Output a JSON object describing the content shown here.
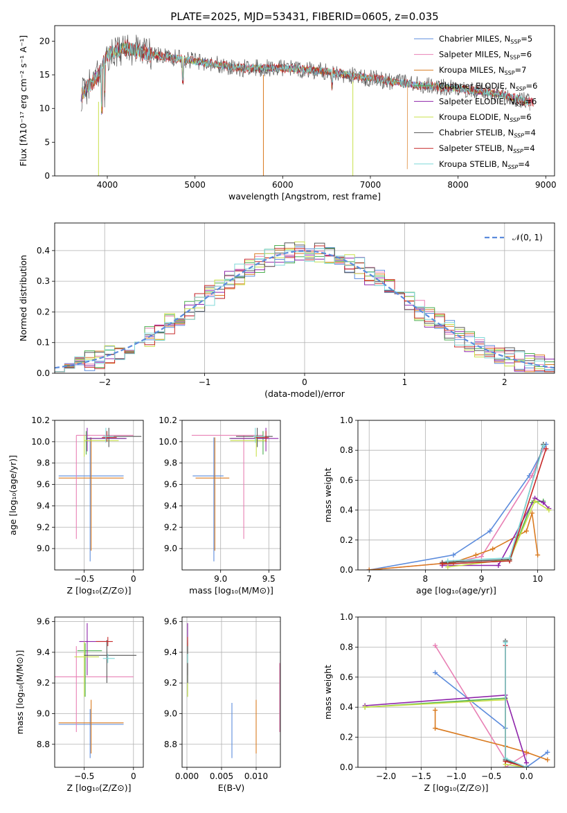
{
  "figure": {
    "title": "PLATE=2025, MJD=53431, FIBERID=0605, z=0.035"
  },
  "colors": {
    "chabrier_miles": "#5b8bdc",
    "salpeter_miles": "#e87fb4",
    "kroupa_miles": "#d97a1f",
    "chabrier_elodie": "#4caf50",
    "salpeter_elodie": "#8e24aa",
    "kroupa_elodie": "#c8e04a",
    "chabrier_stelib": "#555555",
    "salpeter_stelib": "#c62828",
    "kroupa_stelib": "#7fd8d8",
    "gaussian": "#5b8bdc",
    "grid": "#b0b0b0"
  },
  "chart_data": [
    {
      "id": "spectrum",
      "type": "line",
      "xlabel": "wavelength [Angstrom, rest frame]",
      "ylabel": "Flux [fλ10⁻¹⁷ erg cm⁻² s⁻¹ A⁻¹]",
      "xlim": [
        3400,
        9100
      ],
      "ylim": [
        0,
        22.3
      ],
      "xticks": [
        4000,
        5000,
        6000,
        7000,
        8000,
        9000
      ],
      "yticks": [
        0,
        5,
        10,
        15,
        20
      ],
      "grid": false,
      "legend_position": "top-right",
      "legend": [
        {
          "label": "Chabrier MILES, N",
          "sub": "SSP",
          "eq": "=5",
          "color": "#5b8bdc"
        },
        {
          "label": "Salpeter MILES, N",
          "sub": "SSP",
          "eq": "=6",
          "color": "#e87fb4"
        },
        {
          "label": "Kroupa MILES, N",
          "sub": "SSP",
          "eq": "=7",
          "color": "#d97a1f"
        },
        {
          "label": "Chabrier ELODIE, N",
          "sub": "SSP",
          "eq": "=6",
          "color": "#4caf50"
        },
        {
          "label": "Salpeter ELODIE, N",
          "sub": "SSP",
          "eq": "=6",
          "color": "#8e24aa"
        },
        {
          "label": "Kroupa ELODIE, N",
          "sub": "SSP",
          "eq": "=6",
          "color": "#c8e04a"
        },
        {
          "label": "Chabrier STELIB, N",
          "sub": "SSP",
          "eq": "=4",
          "color": "#555555"
        },
        {
          "label": "Salpeter STELIB, N",
          "sub": "SSP",
          "eq": "=4",
          "color": "#c62828"
        },
        {
          "label": "Kroupa STELIB, N",
          "sub": "SSP",
          "eq": "=4",
          "color": "#7fd8d8"
        }
      ],
      "data_envelope": {
        "x": [
          3700,
          3900,
          4000,
          4200,
          4500,
          5000,
          5500,
          6000,
          6500,
          7000,
          7500,
          8000,
          8500,
          8800
        ],
        "y": [
          12,
          15,
          18,
          19,
          18,
          17,
          16,
          16,
          15.5,
          14.5,
          13.5,
          13,
          12,
          11
        ]
      }
    },
    {
      "id": "residuals",
      "type": "histogram",
      "xlabel": "(data-model)/error",
      "ylabel": "Normed distribution",
      "xlim": [
        -2.5,
        2.5
      ],
      "ylim": [
        0,
        0.49
      ],
      "xticks": [
        -2,
        -1,
        0,
        1,
        2
      ],
      "yticks": [
        0.0,
        0.1,
        0.2,
        0.3,
        0.4
      ],
      "grid": true,
      "legend": [
        {
          "label": "𝒩(0, 1)",
          "style": "dashed"
        }
      ],
      "legend_position": "top-right",
      "bin_edges_start": -2.5,
      "bin_width": 0.1
    },
    {
      "id": "age_vs_Z",
      "type": "errorbar",
      "xlabel": "Z [log₁₀(Z/Z⊙)]",
      "ylabel": "age  [log₁₀(age/yr)]",
      "xlim": [
        -0.8,
        0.1
      ],
      "ylim": [
        8.8,
        10.2
      ],
      "xticks": [
        -0.5,
        0.0
      ],
      "yticks": [
        9.0,
        9.2,
        9.4,
        9.6,
        9.8,
        10.0,
        10.2
      ],
      "grid": true,
      "points": [
        {
          "series": "chabrier_miles",
          "x": -0.44,
          "y": 9.68,
          "xerr": [
            0.32,
            0.34
          ],
          "yerr": [
            0.8,
            0.36
          ]
        },
        {
          "series": "kroupa_miles",
          "x": -0.43,
          "y": 9.66,
          "xerr": [
            0.33,
            0.33
          ],
          "yerr": [
            0.68,
            0.38
          ]
        },
        {
          "series": "salpeter_miles",
          "x": -0.58,
          "y": 10.06,
          "xerr": [
            0.0,
            0.58
          ],
          "yerr": [
            0.97,
            0.0
          ]
        },
        {
          "series": "chabrier_elodie",
          "x": -0.48,
          "y": 10.03,
          "xerr": [
            0.0,
            0.4
          ],
          "yerr": [
            0.15,
            0.07
          ]
        },
        {
          "series": "salpeter_elodie",
          "x": -0.47,
          "y": 10.03,
          "xerr": [
            0.0,
            0.4
          ],
          "yerr": [
            0.12,
            0.1
          ]
        },
        {
          "series": "kroupa_elodie",
          "x": -0.5,
          "y": 10.01,
          "xerr": [
            0.0,
            0.35
          ],
          "yerr": [
            0.15,
            0.05
          ]
        },
        {
          "series": "chabrier_stelib",
          "x": -0.25,
          "y": 10.05,
          "xerr": [
            0.0,
            0.33
          ],
          "yerr": [
            0.1,
            0.08
          ]
        },
        {
          "series": "salpeter_stelib",
          "x": -0.27,
          "y": 10.04,
          "xerr": [
            0.05,
            0.1
          ],
          "yerr": [
            0.04,
            0.06
          ]
        },
        {
          "series": "kroupa_stelib",
          "x": -0.28,
          "y": 10.05,
          "xerr": [
            0.03,
            0.08
          ],
          "yerr": [
            0.06,
            0.08
          ]
        }
      ]
    },
    {
      "id": "age_vs_mass",
      "type": "errorbar",
      "xlabel": "mass [log₁₀(M/M⊙)]",
      "ylabel": "",
      "xlim": [
        8.6,
        9.62
      ],
      "ylim": [
        8.8,
        10.2
      ],
      "xticks": [
        9.0,
        9.5
      ],
      "yticks": [
        9.0,
        9.2,
        9.4,
        9.6,
        9.8,
        10.0,
        10.2
      ],
      "grid": true,
      "points": [
        {
          "series": "chabrier_miles",
          "x": 8.93,
          "y": 9.68,
          "xerr": [
            0.22,
            0.1
          ],
          "yerr": [
            0.8,
            0.36
          ]
        },
        {
          "series": "kroupa_miles",
          "x": 8.94,
          "y": 9.66,
          "xerr": [
            0.2,
            0.15
          ],
          "yerr": [
            0.68,
            0.38
          ]
        },
        {
          "series": "salpeter_miles",
          "x": 9.24,
          "y": 10.06,
          "xerr": [
            0.54,
            0.2
          ],
          "yerr": [
            0.97,
            0.0
          ]
        },
        {
          "series": "chabrier_elodie",
          "x": 9.44,
          "y": 10.03,
          "xerr": [
            0.35,
            0.05
          ],
          "yerr": [
            0.15,
            0.07
          ]
        },
        {
          "series": "salpeter_elodie",
          "x": 9.47,
          "y": 10.03,
          "xerr": [
            0.37,
            0.13
          ],
          "yerr": [
            0.12,
            0.1
          ]
        },
        {
          "series": "kroupa_elodie",
          "x": 9.37,
          "y": 10.01,
          "xerr": [
            0.27,
            0.1
          ],
          "yerr": [
            0.15,
            0.05
          ]
        },
        {
          "series": "chabrier_stelib",
          "x": 9.38,
          "y": 10.05,
          "xerr": [
            0.22,
            0.16
          ],
          "yerr": [
            0.1,
            0.08
          ]
        },
        {
          "series": "salpeter_stelib",
          "x": 9.47,
          "y": 10.04,
          "xerr": [
            0.12,
            0.03
          ],
          "yerr": [
            0.04,
            0.06
          ]
        },
        {
          "series": "kroupa_stelib",
          "x": 9.36,
          "y": 10.05,
          "xerr": [
            0.02,
            0.1
          ],
          "yerr": [
            0.06,
            0.08
          ]
        }
      ]
    },
    {
      "id": "massweight_vs_age",
      "type": "line",
      "xlabel": "age  [log₁₀(age/yr)]",
      "ylabel": "mass weight",
      "xlim": [
        6.8,
        10.3
      ],
      "ylim": [
        0.0,
        1.0
      ],
      "xticks": [
        7,
        8,
        9,
        10
      ],
      "yticks": [
        0.0,
        0.2,
        0.4,
        0.6,
        0.8,
        1.0
      ],
      "grid": true,
      "series": [
        {
          "name": "chabrier_miles",
          "x": [
            7.0,
            8.5,
            9.15,
            9.85,
            10.15
          ],
          "y": [
            0.0,
            0.1,
            0.26,
            0.63,
            0.84
          ]
        },
        {
          "name": "salpeter_miles",
          "x": [
            7.0,
            8.5,
            9.0,
            9.9,
            10.1
          ],
          "y": [
            0.0,
            0.05,
            0.09,
            0.63,
            0.81
          ]
        },
        {
          "name": "kroupa_miles",
          "x": [
            7.0,
            8.5,
            8.9,
            9.2,
            9.8,
            9.9,
            10.0
          ],
          "y": [
            0.0,
            0.05,
            0.1,
            0.14,
            0.26,
            0.38,
            0.1
          ]
        },
        {
          "name": "chabrier_elodie",
          "x": [
            8.3,
            9.5,
            9.9,
            10.1
          ],
          "y": [
            0.04,
            0.06,
            0.45,
            0.46
          ]
        },
        {
          "name": "salpeter_elodie",
          "x": [
            8.3,
            9.3,
            9.95,
            10.1,
            10.2
          ],
          "y": [
            0.03,
            0.03,
            0.48,
            0.45,
            0.41
          ]
        },
        {
          "name": "kroupa_elodie",
          "x": [
            8.4,
            9.5,
            9.95,
            10.2
          ],
          "y": [
            0.02,
            0.07,
            0.46,
            0.4
          ]
        },
        {
          "name": "chabrier_stelib",
          "x": [
            8.3,
            9.5,
            10.1
          ],
          "y": [
            0.05,
            0.07,
            0.84
          ]
        },
        {
          "name": "salpeter_stelib",
          "x": [
            8.3,
            9.5,
            10.15
          ],
          "y": [
            0.04,
            0.06,
            0.81
          ]
        },
        {
          "name": "kroupa_stelib",
          "x": [
            8.4,
            9.5,
            10.1
          ],
          "y": [
            0.06,
            0.08,
            0.83
          ]
        }
      ]
    },
    {
      "id": "mass_vs_Z",
      "type": "errorbar",
      "xlabel": "Z [log₁₀(Z/Z⊙)]",
      "ylabel": "mass [log₁₀(M/M⊙)]",
      "xlim": [
        -0.8,
        0.1
      ],
      "ylim": [
        8.65,
        9.63
      ],
      "xticks": [
        -0.5,
        0.0
      ],
      "yticks": [
        8.8,
        9.0,
        9.2,
        9.4,
        9.6
      ],
      "grid": true,
      "points": [
        {
          "series": "chabrier_miles",
          "x": -0.44,
          "y": 8.93,
          "xerr": [
            0.32,
            0.34
          ],
          "yerr": [
            0.22,
            0.1
          ]
        },
        {
          "series": "kroupa_miles",
          "x": -0.43,
          "y": 8.94,
          "xerr": [
            0.33,
            0.33
          ],
          "yerr": [
            0.2,
            0.15
          ]
        },
        {
          "series": "salpeter_miles",
          "x": -0.58,
          "y": 9.24,
          "xerr": [
            0.22,
            0.58
          ],
          "yerr": [
            0.36,
            0.2
          ]
        },
        {
          "series": "chabrier_elodie",
          "x": -0.49,
          "y": 9.41,
          "xerr": [
            0.08,
            0.17
          ],
          "yerr": [
            0.3,
            0.05
          ]
        },
        {
          "series": "salpeter_elodie",
          "x": -0.47,
          "y": 9.47,
          "xerr": [
            0.08,
            0.2
          ],
          "yerr": [
            0.22,
            0.12
          ]
        },
        {
          "series": "kroupa_elodie",
          "x": -0.5,
          "y": 9.37,
          "xerr": [
            0.1,
            0.15
          ],
          "yerr": [
            0.26,
            0.1
          ]
        },
        {
          "series": "chabrier_stelib",
          "x": -0.27,
          "y": 9.38,
          "xerr": [
            0.23,
            0.3
          ],
          "yerr": [
            0.18,
            0.1
          ]
        },
        {
          "series": "salpeter_stelib",
          "x": -0.26,
          "y": 9.47,
          "xerr": [
            0.12,
            0.05
          ],
          "yerr": [
            0.03,
            0.03
          ]
        },
        {
          "series": "kroupa_stelib",
          "x": -0.26,
          "y": 9.36,
          "xerr": [
            0.05,
            0.07
          ],
          "yerr": [
            0.03,
            0.03
          ]
        }
      ]
    },
    {
      "id": "mass_vs_ebv",
      "type": "errorbar",
      "xlabel": "E(B-V)",
      "ylabel": "",
      "xlim": [
        -0.0007,
        0.0135
      ],
      "ylim": [
        8.65,
        9.63
      ],
      "xticks": [
        0.0,
        0.005,
        0.01
      ],
      "yticks": [
        8.8,
        9.0,
        9.2,
        9.4,
        9.6
      ],
      "grid": true,
      "points": [
        {
          "series": "chabrier_miles",
          "x": 0.0065,
          "y": 8.93,
          "xerr": [
            0,
            0
          ],
          "yerr": [
            0.22,
            0.14
          ]
        },
        {
          "series": "kroupa_miles",
          "x": 0.01,
          "y": 8.94,
          "xerr": [
            0,
            0
          ],
          "yerr": [
            0.2,
            0.15
          ]
        },
        {
          "series": "salpeter_miles",
          "x": 0.0134,
          "y": 9.1,
          "xerr": [
            0,
            0
          ],
          "yerr": [
            0.22,
            0.23
          ]
        },
        {
          "series": "chabrier_elodie",
          "x": 0.0001,
          "y": 9.41,
          "xerr": [
            0,
            0
          ],
          "yerr": [
            0.3,
            0.05
          ]
        },
        {
          "series": "salpeter_elodie",
          "x": 0.0001,
          "y": 9.47,
          "xerr": [
            0,
            0
          ],
          "yerr": [
            0.22,
            0.12
          ]
        },
        {
          "series": "kroupa_elodie",
          "x": 0.0001,
          "y": 9.37,
          "xerr": [
            0,
            0
          ],
          "yerr": [
            0.26,
            0.1
          ]
        },
        {
          "series": "chabrier_stelib",
          "x": 0.0001,
          "y": 9.38,
          "xerr": [
            0,
            0
          ],
          "yerr": [
            0.18,
            0.1
          ]
        },
        {
          "series": "salpeter_stelib",
          "x": 0.0001,
          "y": 9.47,
          "xerr": [
            0,
            0
          ],
          "yerr": [
            0.03,
            0.03
          ]
        },
        {
          "series": "kroupa_stelib",
          "x": 0.0001,
          "y": 9.36,
          "xerr": [
            0,
            0
          ],
          "yerr": [
            0.03,
            0.03
          ]
        }
      ]
    },
    {
      "id": "massweight_vs_Z",
      "type": "line",
      "xlabel": "Z [log₁₀(Z/Z⊙)]",
      "ylabel": "mass weight",
      "xlim": [
        -2.4,
        0.4
      ],
      "ylim": [
        0.0,
        1.0
      ],
      "xticks": [
        -2.0,
        -1.5,
        -1.0,
        -0.5,
        0.0
      ],
      "yticks": [
        0.0,
        0.2,
        0.4,
        0.6,
        0.8,
        1.0
      ],
      "grid": true,
      "series": [
        {
          "name": "chabrier_miles",
          "x": [
            -1.3,
            -0.3,
            -0.3,
            0.0,
            0.3
          ],
          "y": [
            0.63,
            0.26,
            0.0,
            0.0,
            0.1
          ]
        },
        {
          "name": "salpeter_miles",
          "x": [
            -1.3,
            -0.3,
            -0.3,
            0.0
          ],
          "y": [
            0.81,
            0.05,
            0.0,
            0.09
          ]
        },
        {
          "name": "kroupa_miles",
          "x": [
            -1.3,
            -1.3,
            -0.3,
            0.0,
            0.3
          ],
          "y": [
            0.38,
            0.26,
            0.14,
            0.1,
            0.05
          ]
        },
        {
          "name": "chabrier_elodie",
          "x": [
            -2.3,
            -0.3,
            -0.3,
            0.0
          ],
          "y": [
            0.4,
            0.46,
            0.04,
            0.0
          ]
        },
        {
          "name": "salpeter_elodie",
          "x": [
            -2.3,
            -0.3,
            0.0
          ],
          "y": [
            0.41,
            0.48,
            0.03
          ]
        },
        {
          "name": "kroupa_elodie",
          "x": [
            -2.3,
            -0.3,
            -0.3,
            0.0
          ],
          "y": [
            0.4,
            0.45,
            0.02,
            0.0
          ]
        },
        {
          "name": "chabrier_stelib",
          "x": [
            -0.3,
            -0.3,
            0.0
          ],
          "y": [
            0.84,
            0.05,
            0.0
          ]
        },
        {
          "name": "salpeter_stelib",
          "x": [
            -0.3,
            -0.3,
            0.0
          ],
          "y": [
            0.81,
            0.04,
            0.0
          ]
        },
        {
          "name": "kroupa_stelib",
          "x": [
            -0.3,
            -0.3,
            0.0
          ],
          "y": [
            0.83,
            0.06,
            0.0
          ]
        }
      ]
    }
  ]
}
